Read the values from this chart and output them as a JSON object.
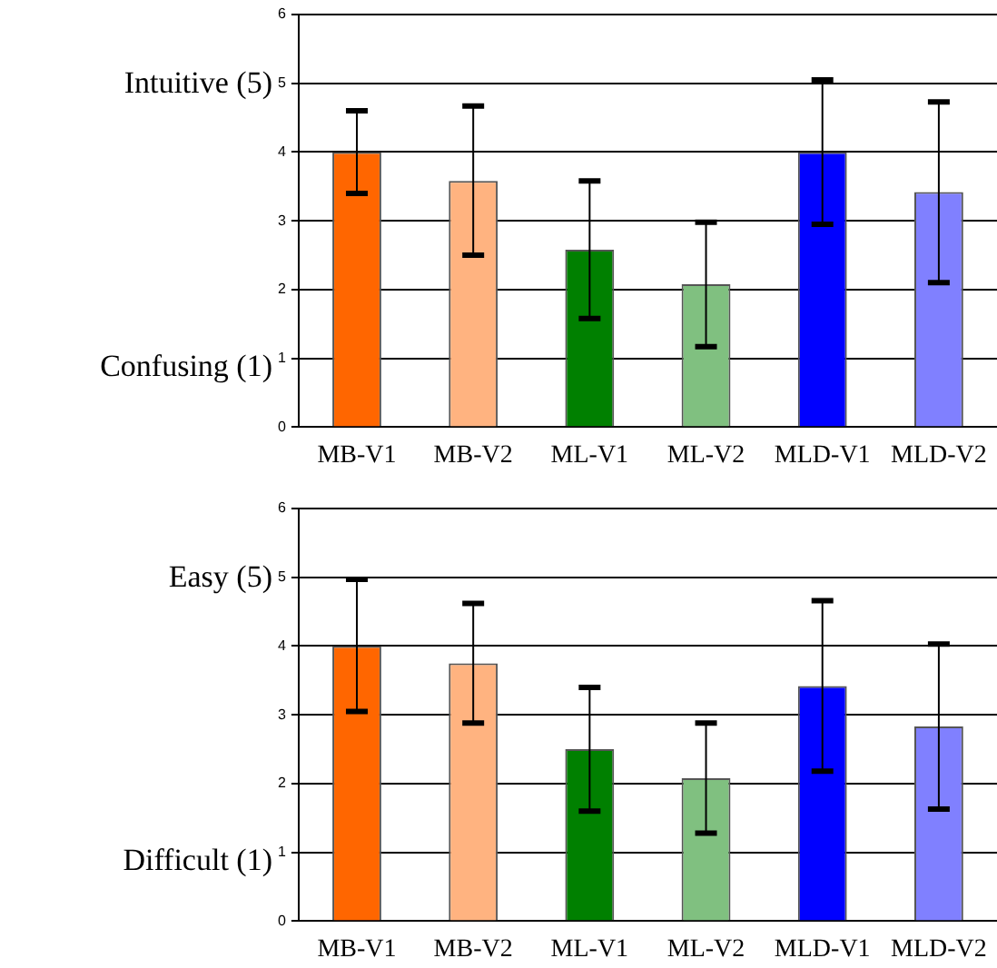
{
  "chart_data": [
    {
      "type": "bar",
      "categories": [
        "MB-V1",
        "MB-V2",
        "ML-V1",
        "ML-V2",
        "MLD-V1",
        "MLD-V2"
      ],
      "values": [
        4.0,
        3.58,
        2.58,
        2.08,
        4.0,
        3.42
      ],
      "colors": [
        "#ff6600",
        "#ffb380",
        "#008000",
        "#80c080",
        "#0000ff",
        "#8080ff"
      ],
      "errors": [
        [
          3.4,
          4.6
        ],
        [
          2.5,
          4.67
        ],
        [
          1.58,
          3.58
        ],
        [
          1.17,
          2.98
        ],
        [
          2.95,
          5.05
        ],
        [
          2.1,
          4.73
        ]
      ],
      "ylim": [
        0,
        6
      ],
      "yticks": [
        0,
        1,
        2,
        3,
        4,
        5,
        6
      ],
      "grid": "y",
      "annotations": [
        "Intuitive (5)",
        "Confusing (1)"
      ]
    },
    {
      "type": "bar",
      "categories": [
        "MB-V1",
        "MB-V2",
        "ML-V1",
        "ML-V2",
        "MLD-V1",
        "MLD-V2"
      ],
      "values": [
        4.0,
        3.75,
        2.5,
        2.08,
        3.42,
        2.83
      ],
      "colors": [
        "#ff6600",
        "#ffb380",
        "#008000",
        "#80c080",
        "#0000ff",
        "#8080ff"
      ],
      "errors": [
        [
          3.05,
          4.97
        ],
        [
          2.88,
          4.62
        ],
        [
          1.6,
          3.4
        ],
        [
          1.28,
          2.88
        ],
        [
          2.18,
          4.66
        ],
        [
          1.63,
          4.03
        ]
      ],
      "ylim": [
        0,
        6
      ],
      "yticks": [
        0,
        1,
        2,
        3,
        4,
        5,
        6
      ],
      "grid": "y",
      "annotations": [
        "Easy (5)",
        "Difficult (1)"
      ]
    }
  ]
}
